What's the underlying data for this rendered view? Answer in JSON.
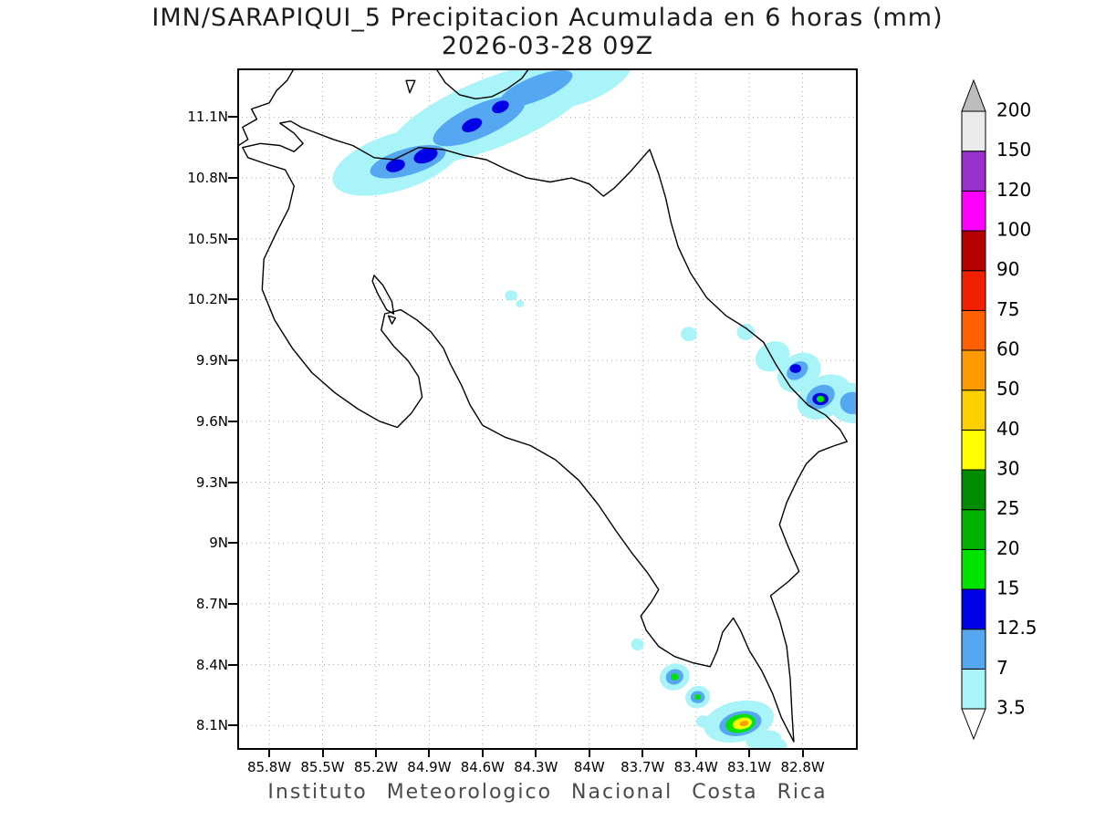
{
  "header": {
    "title_line1": "IMN/SARAPIQUI_5 Precipitacion Acumulada en 6 horas (mm)",
    "title_line2": "2026-03-28 09Z"
  },
  "footer": {
    "caption": "Instituto Meteorologico Nacional Costa Rica"
  },
  "chart_data": {
    "type": "heatmap",
    "subtype": "filled-contour-precipitation-map",
    "title": "IMN/SARAPIQUI_5 Precipitacion Acumulada en 6 horas (mm)",
    "valid_time": "2026-03-28 09Z",
    "units": "mm",
    "region": "Costa Rica",
    "grid": true,
    "lon_range": [
      -85.98,
      -82.49
    ],
    "lat_range": [
      7.98,
      11.34
    ],
    "x_axis": {
      "ticks": [
        {
          "label": "85.8W",
          "lon": -85.8
        },
        {
          "label": "85.5W",
          "lon": -85.5
        },
        {
          "label": "85.2W",
          "lon": -85.2
        },
        {
          "label": "84.9W",
          "lon": -84.9
        },
        {
          "label": "84.6W",
          "lon": -84.6
        },
        {
          "label": "84.3W",
          "lon": -84.3
        },
        {
          "label": "84W",
          "lon": -84.0
        },
        {
          "label": "83.7W",
          "lon": -83.7
        },
        {
          "label": "83.4W",
          "lon": -83.4
        },
        {
          "label": "83.1W",
          "lon": -83.1
        },
        {
          "label": "82.8W",
          "lon": -82.8
        }
      ]
    },
    "y_axis": {
      "ticks": [
        {
          "label": "11.1N",
          "lat": 11.1
        },
        {
          "label": "10.8N",
          "lat": 10.8
        },
        {
          "label": "10.5N",
          "lat": 10.5
        },
        {
          "label": "10.2N",
          "lat": 10.2
        },
        {
          "label": "9.9N",
          "lat": 9.9
        },
        {
          "label": "9.6N",
          "lat": 9.6
        },
        {
          "label": "9.3N",
          "lat": 9.3
        },
        {
          "label": "9N",
          "lat": 9.0
        },
        {
          "label": "8.7N",
          "lat": 8.7
        },
        {
          "label": "8.4N",
          "lat": 8.4
        },
        {
          "label": "8.1N",
          "lat": 8.1
        }
      ]
    },
    "colorbar": {
      "position": "right",
      "levels": [
        "3.5",
        "7",
        "12.5",
        "15",
        "20",
        "25",
        "30",
        "40",
        "50",
        "60",
        "75",
        "90",
        "100",
        "120",
        "150",
        "200"
      ],
      "colors": [
        "#ffffff",
        "#a8f4f8",
        "#55a7f2",
        "#0000e6",
        "#00e400",
        "#00b400",
        "#008c00",
        "#ffff00",
        "#ffd000",
        "#ff9900",
        "#ff6000",
        "#f02000",
        "#b40000",
        "#ff00ff",
        "#9932cc",
        "#ebebeb",
        "#bdbdbd"
      ]
    },
    "coastlines": [
      {
        "name": "costa-rica-outline",
        "closed": true,
        "points": [
          [
            -85.74,
            11.07
          ],
          [
            -85.68,
            11.08
          ],
          [
            -85.62,
            11.05
          ],
          [
            -85.53,
            11.02
          ],
          [
            -85.44,
            10.99
          ],
          [
            -85.33,
            10.96
          ],
          [
            -85.21,
            10.9
          ],
          [
            -85.1,
            10.89
          ],
          [
            -84.96,
            10.95
          ],
          [
            -84.82,
            10.94
          ],
          [
            -84.7,
            10.91
          ],
          [
            -84.58,
            10.89
          ],
          [
            -84.46,
            10.84
          ],
          [
            -84.35,
            10.8
          ],
          [
            -84.22,
            10.78
          ],
          [
            -84.1,
            10.8
          ],
          [
            -84.0,
            10.77
          ],
          [
            -83.92,
            10.71
          ],
          [
            -83.86,
            10.75
          ],
          [
            -83.77,
            10.83
          ],
          [
            -83.7,
            10.9
          ],
          [
            -83.66,
            10.94
          ],
          [
            -83.61,
            10.82
          ],
          [
            -83.57,
            10.7
          ],
          [
            -83.54,
            10.58
          ],
          [
            -83.5,
            10.46
          ],
          [
            -83.43,
            10.33
          ],
          [
            -83.34,
            10.21
          ],
          [
            -83.23,
            10.12
          ],
          [
            -83.12,
            10.06
          ],
          [
            -83.02,
            9.99
          ],
          [
            -82.95,
            9.88
          ],
          [
            -82.87,
            9.77
          ],
          [
            -82.77,
            9.68
          ],
          [
            -82.67,
            9.63
          ],
          [
            -82.59,
            9.56
          ],
          [
            -82.55,
            9.5
          ],
          [
            -82.62,
            9.48
          ],
          [
            -82.71,
            9.45
          ],
          [
            -82.78,
            9.39
          ],
          [
            -82.83,
            9.31
          ],
          [
            -82.89,
            9.2
          ],
          [
            -82.93,
            9.09
          ],
          [
            -82.88,
            8.98
          ],
          [
            -82.82,
            8.86
          ],
          [
            -82.88,
            8.81
          ],
          [
            -82.98,
            8.74
          ],
          [
            -82.93,
            8.62
          ],
          [
            -82.89,
            8.49
          ],
          [
            -82.87,
            8.33
          ],
          [
            -82.86,
            8.16
          ],
          [
            -82.85,
            8.02
          ],
          [
            -82.92,
            8.14
          ],
          [
            -82.97,
            8.26
          ],
          [
            -83.03,
            8.37
          ],
          [
            -83.1,
            8.47
          ],
          [
            -83.15,
            8.57
          ],
          [
            -83.19,
            8.63
          ],
          [
            -83.25,
            8.56
          ],
          [
            -83.28,
            8.47
          ],
          [
            -83.32,
            8.39
          ],
          [
            -83.42,
            8.41
          ],
          [
            -83.52,
            8.44
          ],
          [
            -83.61,
            8.49
          ],
          [
            -83.68,
            8.57
          ],
          [
            -83.71,
            8.64
          ],
          [
            -83.65,
            8.71
          ],
          [
            -83.61,
            8.77
          ],
          [
            -83.67,
            8.85
          ],
          [
            -83.76,
            8.95
          ],
          [
            -83.85,
            9.06
          ],
          [
            -83.95,
            9.19
          ],
          [
            -84.06,
            9.31
          ],
          [
            -84.19,
            9.41
          ],
          [
            -84.33,
            9.48
          ],
          [
            -84.47,
            9.52
          ],
          [
            -84.6,
            9.58
          ],
          [
            -84.67,
            9.68
          ],
          [
            -84.72,
            9.78
          ],
          [
            -84.78,
            9.88
          ],
          [
            -84.82,
            9.96
          ],
          [
            -84.89,
            10.04
          ],
          [
            -84.97,
            10.1
          ],
          [
            -85.06,
            10.15
          ],
          [
            -85.15,
            10.13
          ],
          [
            -85.17,
            10.05
          ],
          [
            -85.1,
            9.97
          ],
          [
            -85.02,
            9.9
          ],
          [
            -84.96,
            9.82
          ],
          [
            -84.94,
            9.72
          ],
          [
            -85.0,
            9.64
          ],
          [
            -85.08,
            9.57
          ],
          [
            -85.18,
            9.6
          ],
          [
            -85.3,
            9.66
          ],
          [
            -85.43,
            9.74
          ],
          [
            -85.56,
            9.84
          ],
          [
            -85.67,
            9.96
          ],
          [
            -85.77,
            10.1
          ],
          [
            -85.84,
            10.25
          ],
          [
            -85.83,
            10.4
          ],
          [
            -85.76,
            10.53
          ],
          [
            -85.69,
            10.65
          ],
          [
            -85.66,
            10.76
          ],
          [
            -85.71,
            10.84
          ],
          [
            -85.82,
            10.87
          ],
          [
            -85.92,
            10.9
          ],
          [
            -85.95,
            10.95
          ],
          [
            -85.85,
            10.97
          ],
          [
            -85.74,
            10.96
          ],
          [
            -85.66,
            10.93
          ],
          [
            -85.61,
            10.97
          ],
          [
            -85.66,
            11.02
          ],
          [
            -85.74,
            11.07
          ]
        ]
      },
      {
        "name": "nicaragua-pacific-coast",
        "closed": false,
        "points": [
          [
            -85.99,
            10.95
          ],
          [
            -85.92,
            10.99
          ],
          [
            -85.95,
            11.05
          ],
          [
            -85.87,
            11.09
          ],
          [
            -85.9,
            11.14
          ],
          [
            -85.8,
            11.17
          ],
          [
            -85.76,
            11.23
          ],
          [
            -85.7,
            11.28
          ],
          [
            -85.66,
            11.34
          ]
        ]
      },
      {
        "name": "lake-nicaragua-shore",
        "closed": false,
        "points": [
          [
            -84.87,
            11.35
          ],
          [
            -84.81,
            11.27
          ],
          [
            -84.73,
            11.21
          ],
          [
            -84.64,
            11.19
          ],
          [
            -84.55,
            11.2
          ],
          [
            -84.46,
            11.24
          ],
          [
            -84.38,
            11.29
          ],
          [
            -84.33,
            11.35
          ]
        ]
      },
      {
        "name": "lake-islet",
        "closed": true,
        "points": [
          [
            -85.03,
            11.28
          ],
          [
            -84.98,
            11.28
          ],
          [
            -85.01,
            11.22
          ]
        ]
      },
      {
        "name": "gulf-of-nicoya-estuary",
        "closed": true,
        "points": [
          [
            -85.21,
            10.32
          ],
          [
            -85.16,
            10.27
          ],
          [
            -85.11,
            10.19
          ],
          [
            -85.1,
            10.13
          ],
          [
            -85.14,
            10.15
          ],
          [
            -85.19,
            10.23
          ],
          [
            -85.22,
            10.29
          ]
        ]
      },
      {
        "name": "chira-islet",
        "closed": true,
        "points": [
          [
            -85.13,
            10.12
          ],
          [
            -85.09,
            10.11
          ],
          [
            -85.11,
            10.08
          ]
        ]
      }
    ],
    "precip_patches": [
      {
        "lon": -85.25,
        "lat": 10.84,
        "rx": 0.14,
        "ry": 0.05,
        "rot": -10,
        "color": 1
      },
      {
        "lon": -85.08,
        "lat": 10.88,
        "rx": 0.38,
        "ry": 0.14,
        "rot": -18,
        "color": 1
      },
      {
        "lon": -84.55,
        "lat": 11.12,
        "rx": 0.62,
        "ry": 0.17,
        "rot": -22,
        "color": 1
      },
      {
        "lon": -84.02,
        "lat": 11.28,
        "rx": 0.28,
        "ry": 0.1,
        "rot": -24,
        "color": 1
      },
      {
        "lon": -85.02,
        "lat": 10.88,
        "rx": 0.22,
        "ry": 0.065,
        "rot": -16,
        "color": 2
      },
      {
        "lon": -84.62,
        "lat": 11.08,
        "rx": 0.28,
        "ry": 0.08,
        "rot": -24,
        "color": 2
      },
      {
        "lon": -84.3,
        "lat": 11.24,
        "rx": 0.22,
        "ry": 0.06,
        "rot": -22,
        "color": 2
      },
      {
        "lon": -85.09,
        "lat": 10.86,
        "rx": 0.055,
        "ry": 0.03,
        "rot": -16,
        "color": 3
      },
      {
        "lon": -84.92,
        "lat": 10.91,
        "rx": 0.07,
        "ry": 0.035,
        "rot": -20,
        "color": 3
      },
      {
        "lon": -84.66,
        "lat": 11.06,
        "rx": 0.06,
        "ry": 0.03,
        "rot": -24,
        "color": 3
      },
      {
        "lon": -84.5,
        "lat": 11.15,
        "rx": 0.05,
        "ry": 0.028,
        "rot": -24,
        "color": 3
      },
      {
        "lon": -84.44,
        "lat": 10.22,
        "rx": 0.035,
        "ry": 0.025,
        "rot": 0,
        "color": 1
      },
      {
        "lon": -84.39,
        "lat": 10.18,
        "rx": 0.022,
        "ry": 0.018,
        "rot": 0,
        "color": 1
      },
      {
        "lon": -83.44,
        "lat": 10.03,
        "rx": 0.045,
        "ry": 0.035,
        "rot": 0,
        "color": 1
      },
      {
        "lon": -83.12,
        "lat": 10.04,
        "rx": 0.05,
        "ry": 0.04,
        "rot": 0,
        "color": 1
      },
      {
        "lon": -82.97,
        "lat": 9.92,
        "rx": 0.1,
        "ry": 0.07,
        "rot": -30,
        "color": 1
      },
      {
        "lon": -82.82,
        "lat": 9.84,
        "rx": 0.13,
        "ry": 0.09,
        "rot": -35,
        "color": 1
      },
      {
        "lon": -82.68,
        "lat": 9.72,
        "rx": 0.16,
        "ry": 0.1,
        "rot": -30,
        "color": 1
      },
      {
        "lon": -82.52,
        "lat": 9.69,
        "rx": 0.13,
        "ry": 0.1,
        "rot": 0,
        "color": 1
      },
      {
        "lon": -82.83,
        "lat": 9.85,
        "rx": 0.065,
        "ry": 0.04,
        "rot": -35,
        "color": 2
      },
      {
        "lon": -82.7,
        "lat": 9.72,
        "rx": 0.085,
        "ry": 0.055,
        "rot": -30,
        "color": 2
      },
      {
        "lon": -82.52,
        "lat": 9.69,
        "rx": 0.07,
        "ry": 0.055,
        "rot": 0,
        "color": 2
      },
      {
        "lon": -82.84,
        "lat": 9.86,
        "rx": 0.032,
        "ry": 0.022,
        "rot": 0,
        "color": 3
      },
      {
        "lon": -82.7,
        "lat": 9.71,
        "rx": 0.045,
        "ry": 0.03,
        "rot": 0,
        "color": 3
      },
      {
        "lon": -82.7,
        "lat": 9.71,
        "rx": 0.022,
        "ry": 0.016,
        "rot": 0,
        "color": 4
      },
      {
        "lon": -83.73,
        "lat": 8.5,
        "rx": 0.035,
        "ry": 0.03,
        "rot": 0,
        "color": 1
      },
      {
        "lon": -83.52,
        "lat": 8.34,
        "rx": 0.085,
        "ry": 0.065,
        "rot": -20,
        "color": 1
      },
      {
        "lon": -83.52,
        "lat": 8.34,
        "rx": 0.05,
        "ry": 0.038,
        "rot": -20,
        "color": 2
      },
      {
        "lon": -83.52,
        "lat": 8.34,
        "rx": 0.022,
        "ry": 0.017,
        "rot": 0,
        "color": 4
      },
      {
        "lon": -83.39,
        "lat": 8.24,
        "rx": 0.07,
        "ry": 0.055,
        "rot": -20,
        "color": 1
      },
      {
        "lon": -83.39,
        "lat": 8.24,
        "rx": 0.04,
        "ry": 0.03,
        "rot": 0,
        "color": 2
      },
      {
        "lon": -83.39,
        "lat": 8.24,
        "rx": 0.018,
        "ry": 0.013,
        "rot": 0,
        "color": 4
      },
      {
        "lon": -83.36,
        "lat": 8.12,
        "rx": 0.04,
        "ry": 0.03,
        "rot": 0,
        "color": 1
      },
      {
        "lon": -83.16,
        "lat": 8.12,
        "rx": 0.2,
        "ry": 0.1,
        "rot": -12,
        "color": 1
      },
      {
        "lon": -83.15,
        "lat": 8.11,
        "rx": 0.12,
        "ry": 0.06,
        "rot": -12,
        "color": 2
      },
      {
        "lon": -83.15,
        "lat": 8.11,
        "rx": 0.085,
        "ry": 0.045,
        "rot": -12,
        "color": 4
      },
      {
        "lon": -83.14,
        "lat": 8.11,
        "rx": 0.055,
        "ry": 0.028,
        "rot": -12,
        "color": 7
      },
      {
        "lon": -83.13,
        "lat": 8.11,
        "rx": 0.025,
        "ry": 0.013,
        "rot": -12,
        "color": 9
      },
      {
        "lon": -83.02,
        "lat": 8.03,
        "rx": 0.1,
        "ry": 0.045,
        "rot": -10,
        "color": 1
      },
      {
        "lon": -82.95,
        "lat": 8.0,
        "rx": 0.06,
        "ry": 0.04,
        "rot": 0,
        "color": 1
      }
    ]
  }
}
